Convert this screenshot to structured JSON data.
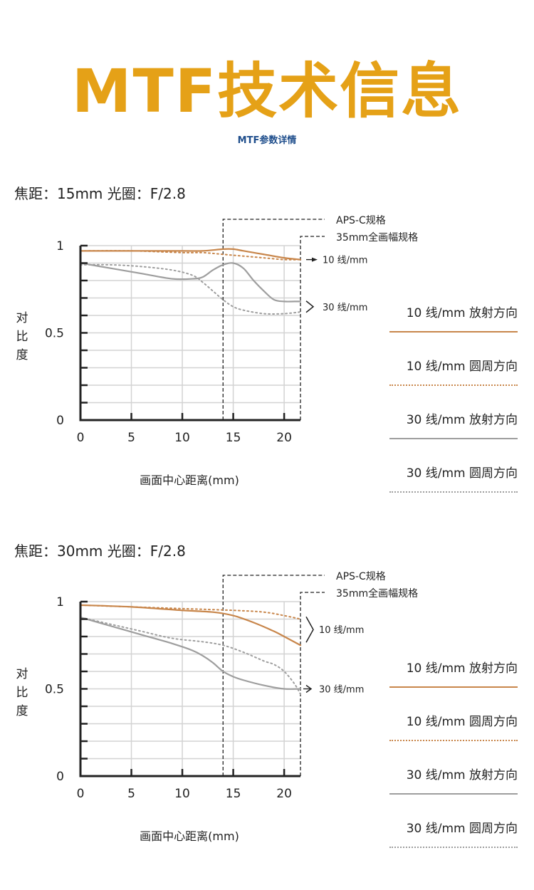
{
  "header": {
    "title": "MTF技术信息",
    "subtitle": "MTF参数详情"
  },
  "colors": {
    "title": "#E5A117",
    "subtitle": "#1F4E8C",
    "line_10": "#C8864B",
    "line_30": "#9E9E9E",
    "grid": "#D3D3D3",
    "axis": "#222222"
  },
  "legend": [
    {
      "label": "10 线/mm  放射方向",
      "style": "solid",
      "color": "#C8864B"
    },
    {
      "label": "10 线/mm  圆周方向",
      "style": "dotted",
      "color": "#C8864B"
    },
    {
      "label": "30 线/mm  放射方向",
      "style": "solid",
      "color": "#9E9E9E"
    },
    {
      "label": "30 线/mm  圆周方向",
      "style": "dotted",
      "color": "#9E9E9E"
    }
  ],
  "sections": [
    {
      "heading": "焦距：15mm  光圈：F/2.8",
      "chart_data": {
        "type": "line",
        "xlabel": "画面中心距离(mm)",
        "ylabel": "对比度",
        "xlim": [
          0,
          21.6
        ],
        "ylim": [
          0,
          1
        ],
        "x_ticks": [
          "0",
          "5",
          "10",
          "15",
          "20"
        ],
        "y_ticks": [
          "0",
          "0.5",
          "1"
        ],
        "grid": true,
        "annotations": {
          "aps_c": "APS-C规格",
          "aps_c_x": 14,
          "full_frame": "35mm全画幅规格",
          "full_frame_x": 21.6,
          "label_10": "10 线/mm",
          "label_30": "30 线/mm"
        },
        "series": [
          {
            "style": "10-radial",
            "x": [
              0,
              5,
              10,
              12,
              14,
              15,
              16,
              18,
              20,
              21.6
            ],
            "values": [
              0.97,
              0.97,
              0.97,
              0.97,
              0.98,
              0.98,
              0.97,
              0.95,
              0.93,
              0.92
            ]
          },
          {
            "style": "10-tangential",
            "x": [
              0,
              5,
              10,
              12,
              14,
              16,
              18,
              20,
              21.6
            ],
            "values": [
              0.97,
              0.97,
              0.96,
              0.96,
              0.95,
              0.94,
              0.93,
              0.92,
              0.92
            ]
          },
          {
            "style": "30-radial",
            "x": [
              0,
              3,
              6,
              9,
              11,
              12,
              13,
              14,
              15,
              16,
              17,
              18,
              19,
              20,
              21,
              21.6
            ],
            "values": [
              0.9,
              0.87,
              0.84,
              0.81,
              0.81,
              0.82,
              0.86,
              0.89,
              0.9,
              0.87,
              0.8,
              0.74,
              0.69,
              0.68,
              0.68,
              0.68
            ]
          },
          {
            "style": "30-tangential",
            "x": [
              0,
              3,
              6,
              9,
              11,
              12,
              13,
              14,
              15,
              16,
              18,
              20,
              21.6
            ],
            "values": [
              0.89,
              0.89,
              0.88,
              0.86,
              0.83,
              0.79,
              0.74,
              0.69,
              0.65,
              0.63,
              0.61,
              0.61,
              0.62
            ]
          }
        ]
      }
    },
    {
      "heading": "焦距：30mm  光圈：F/2.8",
      "chart_data": {
        "type": "line",
        "xlabel": "画面中心距离(mm)",
        "ylabel": "对比度",
        "xlim": [
          0,
          21.6
        ],
        "ylim": [
          0,
          1
        ],
        "x_ticks": [
          "0",
          "5",
          "10",
          "15",
          "20"
        ],
        "y_ticks": [
          "0",
          "0.5",
          "1"
        ],
        "grid": true,
        "annotations": {
          "aps_c": "APS-C规格",
          "aps_c_x": 14,
          "full_frame": "35mm全画幅规格",
          "full_frame_x": 21.6,
          "label_10": "10 线/mm",
          "label_30": "30 线/mm"
        },
        "series": [
          {
            "style": "10-radial",
            "x": [
              0,
              5,
              10,
              13,
              15,
              17,
              19,
              20,
              21.6
            ],
            "values": [
              0.98,
              0.97,
              0.95,
              0.94,
              0.92,
              0.88,
              0.83,
              0.8,
              0.75
            ]
          },
          {
            "style": "10-tangential",
            "x": [
              0,
              5,
              10,
              15,
              18,
              20,
              21.6
            ],
            "values": [
              0.98,
              0.97,
              0.96,
              0.95,
              0.94,
              0.92,
              0.9
            ]
          },
          {
            "style": "30-radial",
            "x": [
              0,
              3,
              6,
              9,
              11,
              12,
              13,
              14,
              15,
              16,
              18,
              20,
              21.6
            ],
            "values": [
              0.91,
              0.86,
              0.81,
              0.76,
              0.72,
              0.69,
              0.65,
              0.6,
              0.57,
              0.55,
              0.52,
              0.5,
              0.5
            ]
          },
          {
            "style": "30-tangential",
            "x": [
              0,
              3,
              6,
              9,
              12,
              14,
              16,
              18,
              19,
              20,
              21,
              21.6
            ],
            "values": [
              0.91,
              0.87,
              0.83,
              0.79,
              0.77,
              0.75,
              0.71,
              0.66,
              0.64,
              0.6,
              0.53,
              0.47
            ]
          }
        ]
      }
    }
  ]
}
